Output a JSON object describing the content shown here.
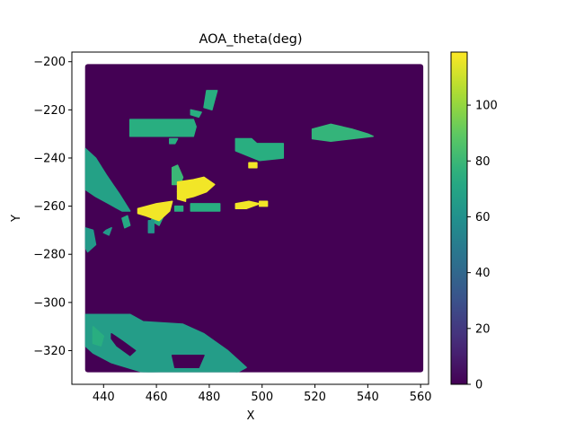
{
  "chart_data": {
    "type": "heatmap",
    "title": "AOA_theta(deg)",
    "xlabel": "X",
    "ylabel": "Y",
    "xlim": [
      428,
      563
    ],
    "ylim": [
      -334,
      -196
    ],
    "x_ticks": [
      440,
      460,
      480,
      500,
      520,
      540,
      560
    ],
    "y_ticks": [
      -200,
      -220,
      -240,
      -260,
      -280,
      -300,
      -320
    ],
    "x_tick_labels": [
      "440",
      "460",
      "480",
      "500",
      "520",
      "540",
      "560"
    ],
    "y_tick_labels": [
      "−200",
      "−220",
      "−240",
      "−260",
      "−280",
      "−300",
      "−320"
    ],
    "colorbar": {
      "colormap": "viridis",
      "range": [
        0,
        119
      ],
      "ticks": [
        0,
        20,
        40,
        60,
        80,
        100
      ],
      "tick_labels": [
        "0",
        "20",
        "40",
        "60",
        "80",
        "100"
      ]
    },
    "grid": false,
    "background_value": 0,
    "data_extent": {
      "x": [
        433,
        561
      ],
      "y": [
        -329,
        -201
      ]
    },
    "regions": [
      {
        "value": 68,
        "polygon": [
          [
            433,
            -236
          ],
          [
            437,
            -240
          ],
          [
            441,
            -247
          ],
          [
            446,
            -255
          ],
          [
            450,
            -262
          ],
          [
            447,
            -262
          ],
          [
            442,
            -259
          ],
          [
            437,
            -256
          ],
          [
            433,
            -253
          ]
        ]
      },
      {
        "value": 64,
        "polygon": [
          [
            433,
            -269
          ],
          [
            436,
            -270
          ],
          [
            437,
            -276
          ],
          [
            434,
            -279
          ],
          [
            433,
            -277
          ]
        ]
      },
      {
        "value": 66,
        "polygon": [
          [
            433,
            -305
          ],
          [
            450,
            -305
          ],
          [
            455,
            -308
          ],
          [
            470,
            -309
          ],
          [
            478,
            -313
          ],
          [
            487,
            -320
          ],
          [
            494,
            -327
          ],
          [
            489,
            -330
          ],
          [
            470,
            -330
          ],
          [
            455,
            -329
          ],
          [
            443,
            -325
          ],
          [
            436,
            -321
          ],
          [
            433,
            -318
          ]
        ]
      },
      {
        "value": 75,
        "polygon": [
          [
            450,
            -224
          ],
          [
            474,
            -224
          ],
          [
            475,
            -227
          ],
          [
            474,
            -231
          ],
          [
            450,
            -231
          ]
        ]
      },
      {
        "value": 75,
        "polygon": [
          [
            479,
            -212
          ],
          [
            483,
            -212
          ],
          [
            482,
            -216
          ],
          [
            481,
            -220
          ],
          [
            478,
            -219
          ]
        ]
      },
      {
        "value": 75,
        "polygon": [
          [
            473,
            -220
          ],
          [
            477,
            -221
          ],
          [
            476,
            -223
          ],
          [
            473,
            -222
          ]
        ]
      },
      {
        "value": 75,
        "polygon": [
          [
            467,
            -228
          ],
          [
            470,
            -228
          ],
          [
            470,
            -230
          ],
          [
            467,
            -230
          ]
        ]
      },
      {
        "value": 75,
        "polygon": [
          [
            465,
            -232
          ],
          [
            468,
            -232
          ],
          [
            467,
            -234
          ],
          [
            465,
            -234
          ]
        ]
      },
      {
        "value": 75,
        "polygon": [
          [
            490,
            -232
          ],
          [
            496,
            -232
          ],
          [
            498,
            -234
          ],
          [
            508,
            -234
          ],
          [
            508,
            -240
          ],
          [
            499,
            -241
          ],
          [
            490,
            -237
          ]
        ]
      },
      {
        "value": 78,
        "polygon": [
          [
            519,
            -228
          ],
          [
            526,
            -226
          ],
          [
            534,
            -228
          ],
          [
            540,
            -230
          ],
          [
            542,
            -231
          ],
          [
            534,
            -232
          ],
          [
            526,
            -233
          ],
          [
            519,
            -232
          ]
        ]
      },
      {
        "value": 75,
        "polygon": [
          [
            473,
            -259
          ],
          [
            484,
            -259
          ],
          [
            484,
            -262
          ],
          [
            473,
            -262
          ]
        ]
      },
      {
        "value": 75,
        "polygon": [
          [
            467,
            -260
          ],
          [
            470,
            -260
          ],
          [
            470,
            -262
          ],
          [
            467,
            -262
          ]
        ]
      },
      {
        "value": 80,
        "polygon": [
          [
            466,
            -244
          ],
          [
            468,
            -243
          ],
          [
            470,
            -248
          ],
          [
            469,
            -251
          ],
          [
            466,
            -251
          ]
        ]
      },
      {
        "value": 74,
        "polygon": [
          [
            460,
            -262
          ],
          [
            464,
            -261
          ],
          [
            461,
            -268
          ],
          [
            458,
            -266
          ]
        ]
      },
      {
        "value": 72,
        "polygon": [
          [
            447,
            -265
          ],
          [
            449,
            -264
          ],
          [
            450,
            -268
          ],
          [
            448,
            -269
          ]
        ]
      },
      {
        "value": 64,
        "polygon": [
          [
            441,
            -270
          ],
          [
            443,
            -269
          ],
          [
            442,
            -272
          ],
          [
            440,
            -271
          ]
        ]
      },
      {
        "value": 62,
        "polygon": [
          [
            457,
            -266
          ],
          [
            459,
            -266
          ],
          [
            459,
            -271
          ],
          [
            457,
            -271
          ]
        ]
      },
      {
        "value": 75,
        "polygon": [
          [
            436,
            -310
          ],
          [
            440,
            -314
          ],
          [
            439,
            -318
          ],
          [
            436,
            -317
          ]
        ]
      },
      {
        "value": 0,
        "polygon": [
          [
            443,
            -313
          ],
          [
            447,
            -316
          ],
          [
            452,
            -320
          ],
          [
            450,
            -322
          ],
          [
            445,
            -318
          ],
          [
            443,
            -315
          ]
        ]
      },
      {
        "value": 0,
        "polygon": [
          [
            466,
            -322
          ],
          [
            478,
            -322
          ],
          [
            476,
            -327
          ],
          [
            467,
            -327
          ]
        ]
      },
      {
        "value": 117,
        "polygon": [
          [
            468,
            -250
          ],
          [
            474,
            -249
          ],
          [
            478,
            -248
          ],
          [
            482,
            -251
          ],
          [
            479,
            -254
          ],
          [
            474,
            -256
          ],
          [
            470,
            -257
          ],
          [
            468,
            -254
          ]
        ]
      },
      {
        "value": 117,
        "polygon": [
          [
            453,
            -261
          ],
          [
            460,
            -259
          ],
          [
            466,
            -258
          ],
          [
            465,
            -262
          ],
          [
            461,
            -266
          ],
          [
            456,
            -264
          ],
          [
            453,
            -263
          ]
        ]
      },
      {
        "value": 117,
        "polygon": [
          [
            490,
            -259
          ],
          [
            495,
            -258
          ],
          [
            499,
            -259
          ],
          [
            494,
            -261
          ],
          [
            490,
            -261
          ]
        ]
      },
      {
        "value": 117,
        "polygon": [
          [
            468,
            -254
          ],
          [
            471,
            -254
          ],
          [
            471,
            -258
          ],
          [
            468,
            -257
          ]
        ]
      },
      {
        "value": 117,
        "polygon": [
          [
            495,
            -242
          ],
          [
            498,
            -242
          ],
          [
            498,
            -244
          ],
          [
            495,
            -244
          ]
        ]
      },
      {
        "value": 117,
        "polygon": [
          [
            499,
            -258
          ],
          [
            502,
            -258
          ],
          [
            502,
            -260
          ],
          [
            499,
            -260
          ]
        ]
      }
    ]
  }
}
